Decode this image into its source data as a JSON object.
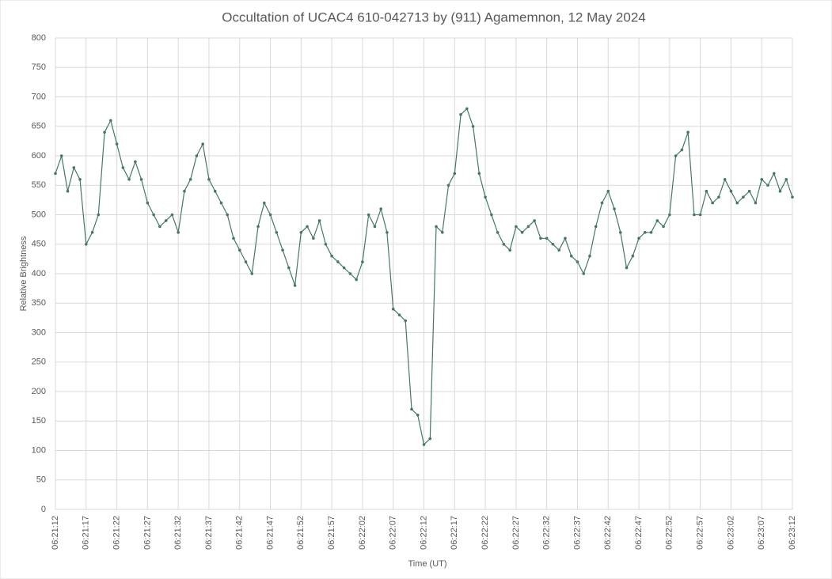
{
  "chart_data": {
    "type": "line",
    "title": "Occultation of UCAC4 610-042713 by (911) Agamemnon, 12 May 2024",
    "x_label": "Time (UT)",
    "y_label": "Relative Brightness",
    "x": [
      "06:21:12",
      "06:21:13",
      "06:21:14",
      "06:21:15",
      "06:21:16",
      "06:21:17",
      "06:21:18",
      "06:21:19",
      "06:21:20",
      "06:21:21",
      "06:21:22",
      "06:21:23",
      "06:21:24",
      "06:21:25",
      "06:21:26",
      "06:21:27",
      "06:21:28",
      "06:21:29",
      "06:21:30",
      "06:21:31",
      "06:21:32",
      "06:21:33",
      "06:21:34",
      "06:21:35",
      "06:21:36",
      "06:21:37",
      "06:21:38",
      "06:21:39",
      "06:21:40",
      "06:21:41",
      "06:21:42",
      "06:21:43",
      "06:21:44",
      "06:21:45",
      "06:21:46",
      "06:21:47",
      "06:21:48",
      "06:21:49",
      "06:21:50",
      "06:21:51",
      "06:21:52",
      "06:21:53",
      "06:21:54",
      "06:21:55",
      "06:21:56",
      "06:21:57",
      "06:21:58",
      "06:21:59",
      "06:22:00",
      "06:22:01",
      "06:22:02",
      "06:22:03",
      "06:22:04",
      "06:22:05",
      "06:22:06",
      "06:22:07",
      "06:22:08",
      "06:22:09",
      "06:22:10",
      "06:22:11",
      "06:22:12",
      "06:22:13",
      "06:22:14",
      "06:22:15",
      "06:22:16",
      "06:22:17",
      "06:22:18",
      "06:22:19",
      "06:22:20",
      "06:22:21",
      "06:22:22",
      "06:22:23",
      "06:22:24",
      "06:22:25",
      "06:22:26",
      "06:22:27",
      "06:22:28",
      "06:22:29",
      "06:22:30",
      "06:22:31",
      "06:22:32",
      "06:22:33",
      "06:22:34",
      "06:22:35",
      "06:22:36",
      "06:22:37",
      "06:22:38",
      "06:22:39",
      "06:22:40",
      "06:22:41",
      "06:22:42",
      "06:22:43",
      "06:22:44",
      "06:22:45",
      "06:22:46",
      "06:22:47",
      "06:22:48",
      "06:22:49",
      "06:22:50",
      "06:22:51",
      "06:22:52",
      "06:22:53",
      "06:22:54",
      "06:22:55",
      "06:22:56",
      "06:22:57",
      "06:22:58",
      "06:22:59",
      "06:23:00",
      "06:23:01",
      "06:23:02",
      "06:23:03",
      "06:23:04",
      "06:23:05",
      "06:23:06",
      "06:23:07",
      "06:23:08",
      "06:23:09",
      "06:23:10",
      "06:23:11",
      "06:23:12"
    ],
    "series": [
      {
        "name": "Relative Brightness",
        "color": "#43786a",
        "values": [
          570,
          600,
          540,
          580,
          560,
          450,
          470,
          500,
          640,
          660,
          620,
          580,
          560,
          590,
          560,
          520,
          500,
          480,
          490,
          500,
          470,
          540,
          560,
          600,
          620,
          560,
          540,
          520,
          500,
          460,
          440,
          420,
          400,
          480,
          520,
          500,
          470,
          440,
          410,
          380,
          470,
          480,
          460,
          490,
          450,
          430,
          420,
          410,
          400,
          390,
          420,
          500,
          480,
          510,
          470,
          340,
          330,
          320,
          170,
          160,
          110,
          120,
          480,
          470,
          550,
          570,
          670,
          680,
          650,
          570,
          530,
          500,
          470,
          450,
          440,
          480,
          470,
          480,
          490,
          460,
          460,
          450,
          440,
          460,
          430,
          420,
          400,
          430,
          480,
          520,
          540,
          510,
          470,
          410,
          430,
          460,
          470,
          470,
          490,
          480,
          500,
          600,
          610,
          640,
          500,
          500,
          540,
          520,
          530,
          560,
          540,
          520,
          530,
          540,
          520,
          560,
          550,
          570,
          540,
          560,
          530
        ]
      }
    ],
    "xlim": [
      "06:21:12",
      "06:23:12"
    ],
    "xticks": [
      "06:21:12",
      "06:21:17",
      "06:21:22",
      "06:21:27",
      "06:21:32",
      "06:21:37",
      "06:21:42",
      "06:21:47",
      "06:21:52",
      "06:21:57",
      "06:22:02",
      "06:22:07",
      "06:22:12",
      "06:22:17",
      "06:22:22",
      "06:22:27",
      "06:22:32",
      "06:22:37",
      "06:22:42",
      "06:22:47",
      "06:22:52",
      "06:22:57",
      "06:23:02",
      "06:23:07",
      "06:23:12"
    ],
    "ylim": [
      0,
      800
    ],
    "yticks": [
      0,
      50,
      100,
      150,
      200,
      250,
      300,
      350,
      400,
      450,
      500,
      550,
      600,
      650,
      700,
      750,
      800
    ],
    "grid": true
  }
}
